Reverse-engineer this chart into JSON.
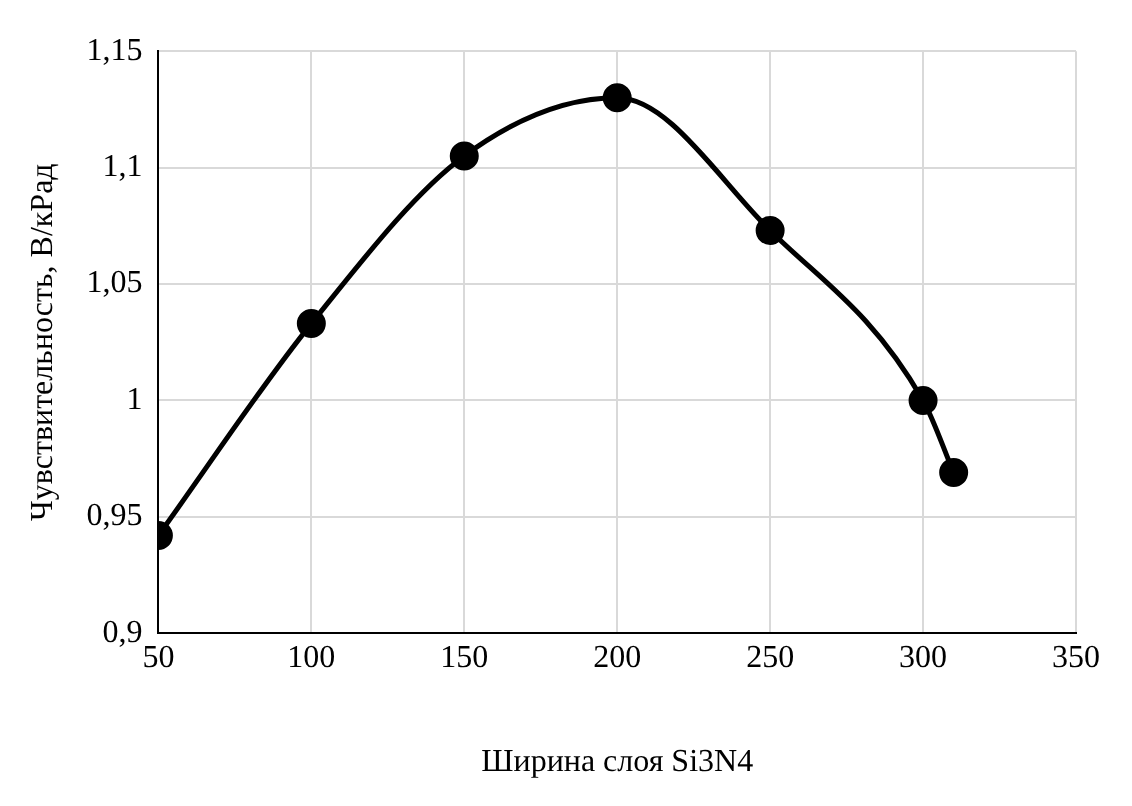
{
  "chart_data": {
    "type": "line",
    "xlabel": "Ширина слоя Si3N4",
    "ylabel": "Чувствительность, В/кРад",
    "x": [
      50,
      100,
      150,
      200,
      250,
      300,
      310
    ],
    "series": [
      {
        "color": "#000000",
        "values": [
          0.942,
          1.033,
          1.105,
          1.13,
          1.073,
          1.0,
          0.969
        ]
      }
    ],
    "xlim": [
      50,
      350
    ],
    "xticks": [
      50,
      100,
      150,
      200,
      250,
      300,
      350
    ],
    "ylim": [
      0.9,
      1.15
    ],
    "yticks": [
      {
        "value": 0.9,
        "label": "0,9"
      },
      {
        "value": 0.95,
        "label": "0,95"
      },
      {
        "value": 1,
        "label": "1"
      },
      {
        "value": 1.05,
        "label": "1,05"
      },
      {
        "value": 1.1,
        "label": "1,1"
      },
      {
        "value": 1.15,
        "label": "1,15"
      }
    ],
    "grid": true,
    "marker": "circle",
    "line_style": "solid",
    "legend": false
  }
}
